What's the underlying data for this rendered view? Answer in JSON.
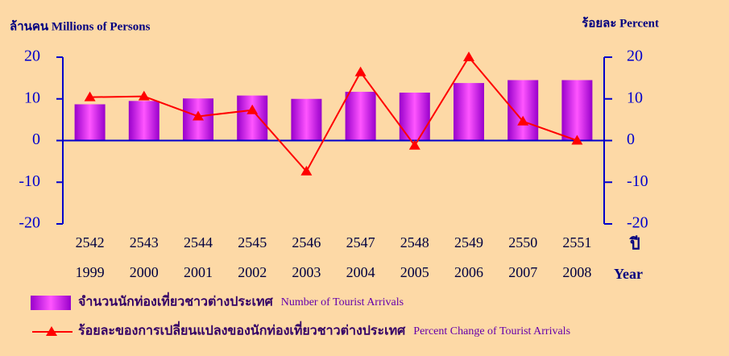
{
  "chart_data": {
    "type": "combo",
    "y_label": "ล้านคน  Millions of Persons",
    "y2_label": "ร้อยละ  Percent",
    "x_label": "ปี",
    "x2_label": "Year",
    "categories": [
      "2542",
      "2543",
      "2544",
      "2545",
      "2546",
      "2547",
      "2548",
      "2549",
      "2550",
      "2551"
    ],
    "categories_ce": [
      "1999",
      "2000",
      "2001",
      "2002",
      "2003",
      "2004",
      "2005",
      "2006",
      "2007",
      "2008"
    ],
    "ylim": [
      -20,
      20
    ],
    "yticks": [
      -20,
      -10,
      0,
      10,
      20
    ],
    "y2lim": [
      -20,
      20
    ],
    "y2ticks": [
      -20,
      -10,
      0,
      10,
      20
    ],
    "series": [
      {
        "name": "จำนวนนักท่องเที่ยวชาวต่างประเทศ",
        "name_en": "Number of Tourist Arrivals",
        "type": "bar",
        "color": "#cc00cc",
        "values": [
          8.7,
          9.5,
          10.1,
          10.8,
          10.0,
          11.7,
          11.5,
          13.8,
          14.5,
          14.5
        ]
      },
      {
        "name": "ร้อยละของการเปลี่ยนแปลงของนักท่องเที่ยวชาวต่างประเทศ",
        "name_en": "Percent Change of Tourist Arrivals",
        "type": "line",
        "axis": "y2",
        "color": "#ff0000",
        "values": [
          10.4,
          10.6,
          5.8,
          7.3,
          -7.4,
          16.4,
          -1.2,
          20.0,
          4.6,
          0.0
        ]
      }
    ]
  }
}
